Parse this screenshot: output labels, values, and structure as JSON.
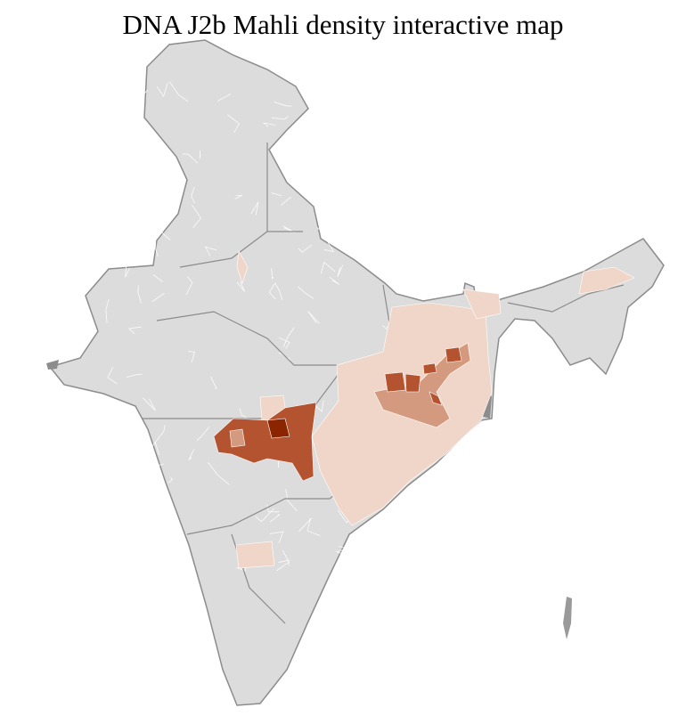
{
  "title": "DNA J2b Mahli density interactive map",
  "colors": {
    "no_data": "#dcdcdc",
    "border": "#8c8c8c",
    "district_line": "#ffffff",
    "level_1": "#f0d6c9",
    "level_2": "#d49a7f",
    "level_3": "#b4532f",
    "level_4": "#8b2500"
  }
}
